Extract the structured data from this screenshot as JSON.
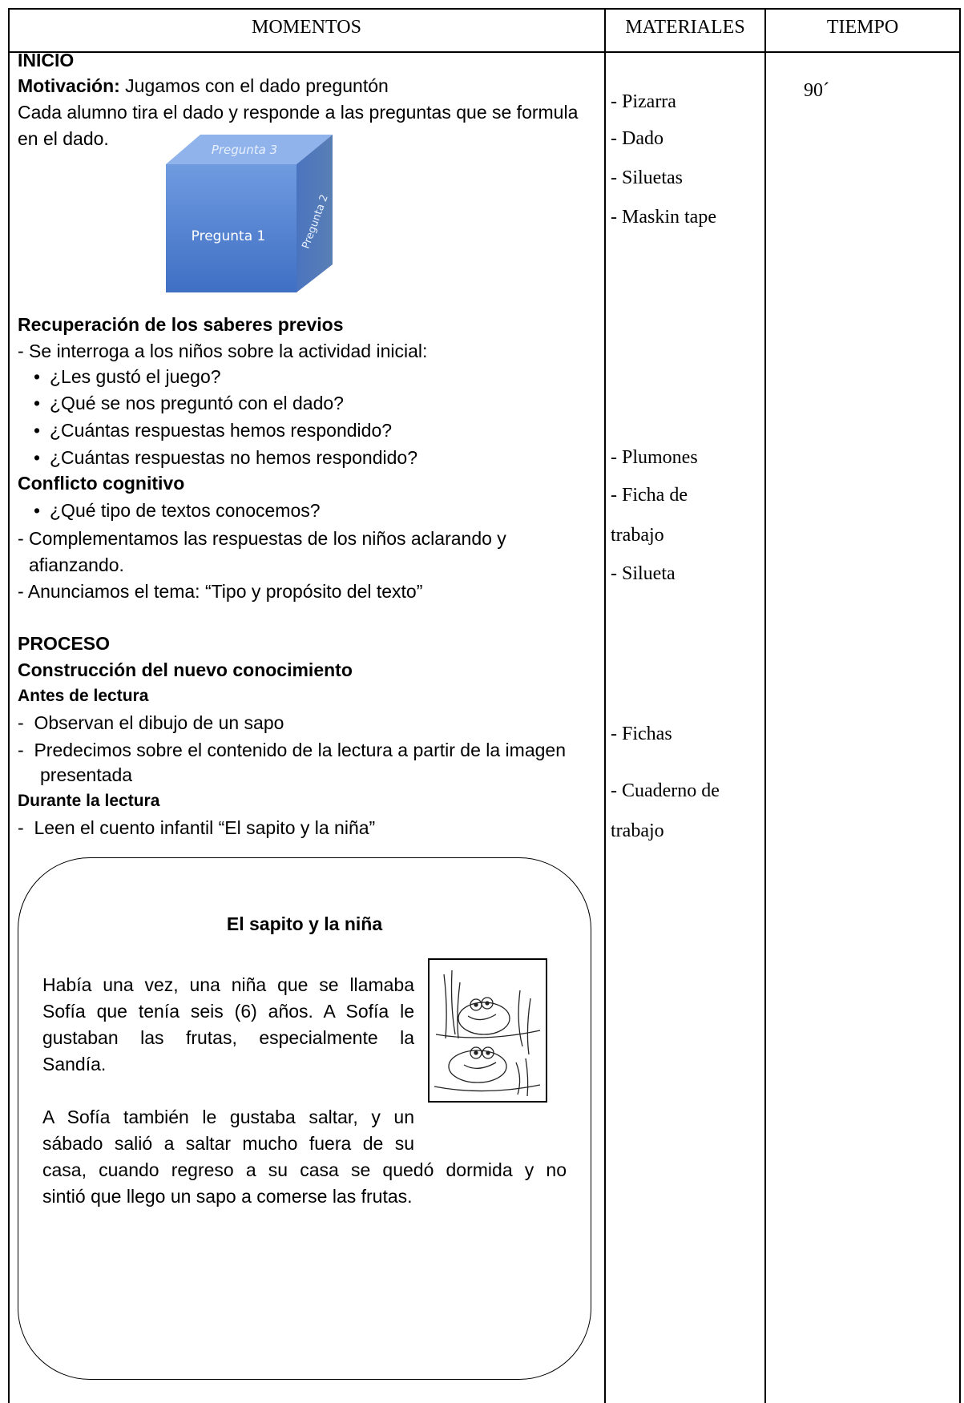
{
  "table": {
    "headers": [
      "MOMENTOS",
      "MATERIALES",
      "TIEMPO"
    ],
    "momentos": {
      "inicio": "INICIO",
      "motivacion": {
        "label": "Motivación:",
        "text": "Jugamos con el dado preguntón"
      },
      "consigna": [
        "Cada alumno tira el dado y responde a las preguntas que se formula",
        "en el dado."
      ],
      "dado": {
        "cara_superior": "Pregunta 3",
        "cara_lateral": "Pregunta 2",
        "cara_frontal": "Pregunta 1"
      },
      "saberes_previos": {
        "title": "Recuperación de los saberes previos",
        "intro": "- Se interroga a los niños sobre la actividad inicial:",
        "preguntas": [
          "¿Les gustó el juego?",
          "¿Qué se nos preguntó con el dado?",
          "¿Cuántas respuestas hemos respondido?",
          "¿Cuántas respuestas no hemos respondido?"
        ]
      },
      "conflicto": {
        "title": "Conflicto cognitivo",
        "preguntas": [
          "¿Qué tipo de textos conocemos?"
        ],
        "complemento": [
          "- Complementamos las respuestas de los niños aclarando y",
          "afianzando."
        ],
        "tema": "- Anunciamos el tema: “Tipo y propósito del texto”"
      },
      "proceso": "PROCESO",
      "construccion": "Construcción del nuevo conocimiento",
      "antes": {
        "title": "Antes de lectura",
        "items": [
          "-  Observan el dibujo de un sapo",
          "-  Predecimos sobre el contenido de la lectura a partir de la imagen",
          "presentada"
        ]
      },
      "durante": {
        "title": "Durante la lectura",
        "items": [
          "-  Leen el cuento infantil “El sapito y la niña”"
        ]
      },
      "cuento": {
        "title": "El sapito y la niña",
        "parrafos": [
          [
            "Había una vez, una niña que se llamaba",
            "Sofía que tenía seis (6) años. A Sofía le",
            "gustaban las frutas, especialmente la",
            "Sandía."
          ],
          [
            "A Sofía también le gustaba saltar, y un",
            "sábado salió a saltar mucho fuera de su",
            "casa, cuando regreso a su casa se quedó dormida y no",
            "sintió que llego un sapo a comerse las frutas."
          ]
        ]
      }
    },
    "materiales": [
      "- Pizarra",
      "- Dado",
      "- Siluetas",
      "- Maskin tape",
      "- Plumones",
      "- Ficha de",
      "trabajo",
      "- Silueta",
      "- Fichas",
      "- Cuaderno de",
      "trabajo"
    ],
    "tiempo": "90´"
  }
}
